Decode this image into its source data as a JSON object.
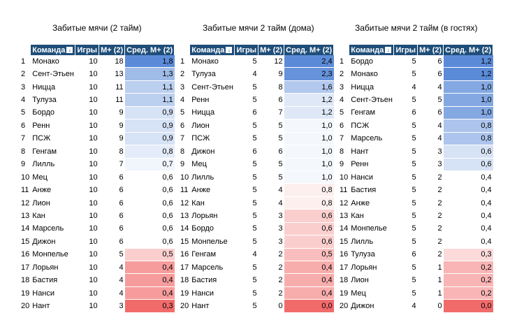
{
  "colors": {
    "header": "#1f4e79",
    "blue": "#5b8bd8",
    "red": "#f26b6b"
  },
  "headers": {
    "team": "Команда",
    "games": "Игры",
    "goals": "М+ (2)",
    "avg": "Сред. М+ (2)",
    "sort_icon": "↓"
  },
  "tables": [
    {
      "title": "Забитые мячи (2 тайм)",
      "rows": [
        {
          "n": "1",
          "team": "Монако",
          "g": "10",
          "m": "18",
          "a": "1,8"
        },
        {
          "n": "2",
          "team": "Сент-Этьен",
          "g": "10",
          "m": "13",
          "a": "1,3"
        },
        {
          "n": "3",
          "team": "Ницца",
          "g": "10",
          "m": "11",
          "a": "1,1"
        },
        {
          "n": "4",
          "team": "Тулуза",
          "g": "10",
          "m": "11",
          "a": "1,1"
        },
        {
          "n": "5",
          "team": "Бордо",
          "g": "10",
          "m": "9",
          "a": "0,9"
        },
        {
          "n": "6",
          "team": "Ренн",
          "g": "10",
          "m": "9",
          "a": "0,9"
        },
        {
          "n": "7",
          "team": "ПСЖ",
          "g": "10",
          "m": "9",
          "a": "0,9"
        },
        {
          "n": "8",
          "team": "Генгам",
          "g": "10",
          "m": "8",
          "a": "0,8"
        },
        {
          "n": "9",
          "team": "Лилль",
          "g": "10",
          "m": "7",
          "a": "0,7"
        },
        {
          "n": "10",
          "team": "Мец",
          "g": "10",
          "m": "6",
          "a": "0,6"
        },
        {
          "n": "11",
          "team": "Анже",
          "g": "10",
          "m": "6",
          "a": "0,6"
        },
        {
          "n": "12",
          "team": "Лион",
          "g": "10",
          "m": "6",
          "a": "0,6"
        },
        {
          "n": "13",
          "team": "Кан",
          "g": "10",
          "m": "6",
          "a": "0,6"
        },
        {
          "n": "14",
          "team": "Марсель",
          "g": "10",
          "m": "6",
          "a": "0,6"
        },
        {
          "n": "15",
          "team": "Дижон",
          "g": "10",
          "m": "6",
          "a": "0,6"
        },
        {
          "n": "16",
          "team": "Монпелье",
          "g": "10",
          "m": "5",
          "a": "0,5"
        },
        {
          "n": "17",
          "team": "Лорьян",
          "g": "10",
          "m": "4",
          "a": "0,4"
        },
        {
          "n": "18",
          "team": "Бастия",
          "g": "10",
          "m": "4",
          "a": "0,4"
        },
        {
          "n": "19",
          "team": "Нанси",
          "g": "10",
          "m": "4",
          "a": "0,4"
        },
        {
          "n": "20",
          "team": "Нант",
          "g": "10",
          "m": "3",
          "a": "0,3"
        }
      ]
    },
    {
      "title": "Забитые мячи 2 тайм (дома)",
      "rows": [
        {
          "n": "1",
          "team": "Монако",
          "g": "5",
          "m": "12",
          "a": "2,4"
        },
        {
          "n": "2",
          "team": "Тулуза",
          "g": "4",
          "m": "9",
          "a": "2,3"
        },
        {
          "n": "3",
          "team": "Сент-Этьен",
          "g": "5",
          "m": "8",
          "a": "1,6"
        },
        {
          "n": "4",
          "team": "Ренн",
          "g": "5",
          "m": "6",
          "a": "1,2"
        },
        {
          "n": "5",
          "team": "Ницца",
          "g": "6",
          "m": "7",
          "a": "1,2"
        },
        {
          "n": "6",
          "team": "Лион",
          "g": "5",
          "m": "5",
          "a": "1,0"
        },
        {
          "n": "7",
          "team": "ПСЖ",
          "g": "5",
          "m": "5",
          "a": "1,0"
        },
        {
          "n": "8",
          "team": "Дижон",
          "g": "6",
          "m": "6",
          "a": "1,0"
        },
        {
          "n": "9",
          "team": "Мец",
          "g": "5",
          "m": "5",
          "a": "1,0"
        },
        {
          "n": "10",
          "team": "Лилль",
          "g": "5",
          "m": "5",
          "a": "1,0"
        },
        {
          "n": "11",
          "team": "Анже",
          "g": "5",
          "m": "4",
          "a": "0,8"
        },
        {
          "n": "12",
          "team": "Кан",
          "g": "5",
          "m": "4",
          "a": "0,8"
        },
        {
          "n": "13",
          "team": "Лорьян",
          "g": "5",
          "m": "3",
          "a": "0,6"
        },
        {
          "n": "14",
          "team": "Бордо",
          "g": "5",
          "m": "3",
          "a": "0,6"
        },
        {
          "n": "15",
          "team": "Монпелье",
          "g": "5",
          "m": "3",
          "a": "0,6"
        },
        {
          "n": "16",
          "team": "Генгам",
          "g": "4",
          "m": "2",
          "a": "0,5"
        },
        {
          "n": "17",
          "team": "Марсель",
          "g": "5",
          "m": "2",
          "a": "0,4"
        },
        {
          "n": "18",
          "team": "Бастия",
          "g": "5",
          "m": "2",
          "a": "0,4"
        },
        {
          "n": "19",
          "team": "Нанси",
          "g": "5",
          "m": "2",
          "a": "0,4"
        },
        {
          "n": "20",
          "team": "Нант",
          "g": "5",
          "m": "0",
          "a": "0,0"
        }
      ]
    },
    {
      "title": "Забитые мячи 2 тайм (в гостях)",
      "rows": [
        {
          "n": "1",
          "team": "Бордо",
          "g": "5",
          "m": "6",
          "a": "1,2"
        },
        {
          "n": "2",
          "team": "Монако",
          "g": "5",
          "m": "6",
          "a": "1,2"
        },
        {
          "n": "3",
          "team": "Ницца",
          "g": "4",
          "m": "4",
          "a": "1,0"
        },
        {
          "n": "4",
          "team": "Сент-Этьен",
          "g": "5",
          "m": "5",
          "a": "1,0"
        },
        {
          "n": "5",
          "team": "Генгам",
          "g": "6",
          "m": "6",
          "a": "1,0"
        },
        {
          "n": "6",
          "team": "ПСЖ",
          "g": "5",
          "m": "4",
          "a": "0,8"
        },
        {
          "n": "7",
          "team": "Марсель",
          "g": "5",
          "m": "4",
          "a": "0,8"
        },
        {
          "n": "8",
          "team": "Нант",
          "g": "5",
          "m": "3",
          "a": "0,6"
        },
        {
          "n": "9",
          "team": "Ренн",
          "g": "5",
          "m": "3",
          "a": "0,6"
        },
        {
          "n": "10",
          "team": "Нанси",
          "g": "5",
          "m": "2",
          "a": "0,4"
        },
        {
          "n": "11",
          "team": "Бастия",
          "g": "5",
          "m": "2",
          "a": "0,4"
        },
        {
          "n": "12",
          "team": "Анже",
          "g": "5",
          "m": "2",
          "a": "0,4"
        },
        {
          "n": "13",
          "team": "Кан",
          "g": "5",
          "m": "2",
          "a": "0,4"
        },
        {
          "n": "14",
          "team": "Монпелье",
          "g": "5",
          "m": "2",
          "a": "0,4"
        },
        {
          "n": "15",
          "team": "Лилль",
          "g": "5",
          "m": "2",
          "a": "0,4"
        },
        {
          "n": "16",
          "team": "Тулуза",
          "g": "6",
          "m": "2",
          "a": "0,3"
        },
        {
          "n": "17",
          "team": "Лорьян",
          "g": "5",
          "m": "1",
          "a": "0,2"
        },
        {
          "n": "18",
          "team": "Лион",
          "g": "5",
          "m": "1",
          "a": "0,2"
        },
        {
          "n": "19",
          "team": "Мец",
          "g": "5",
          "m": "1",
          "a": "0,2"
        },
        {
          "n": "20",
          "team": "Дижон",
          "g": "4",
          "m": "0",
          "a": "0,0"
        }
      ]
    }
  ]
}
